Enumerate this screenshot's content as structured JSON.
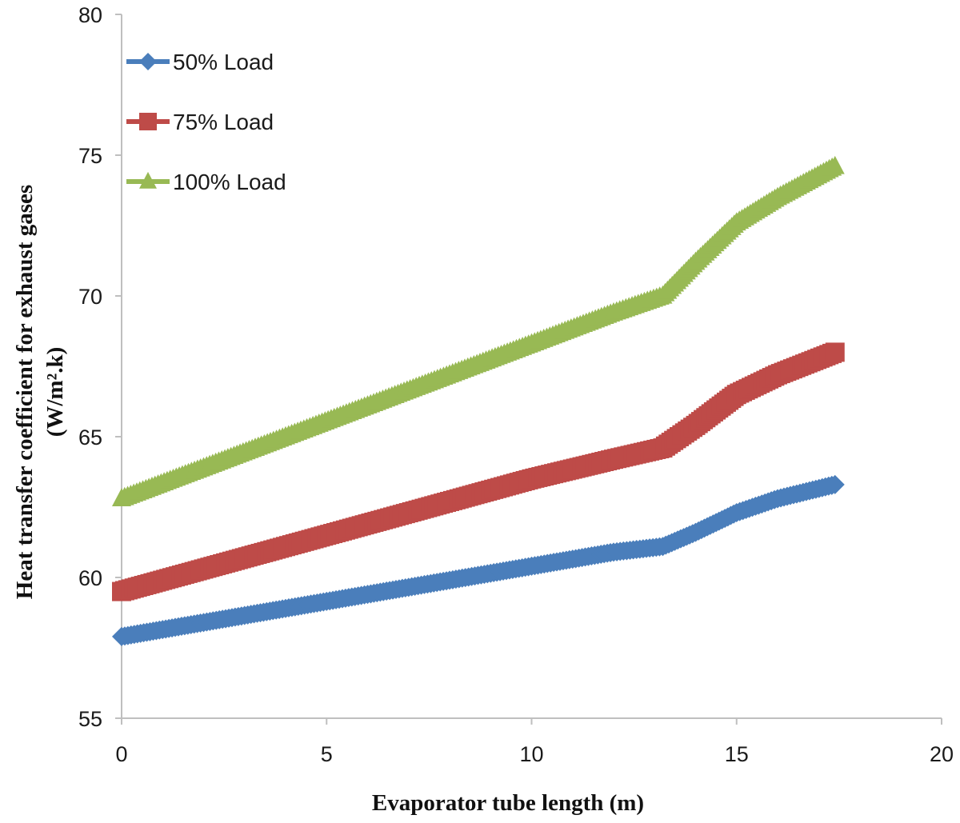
{
  "chart_data": {
    "type": "line",
    "title": "",
    "xlabel": "Evaporator tube length (m)",
    "ylabel_line1": "Heat transfer coefficient for exhaust gases",
    "ylabel_line2": "(W/m².k)",
    "xlim": [
      0,
      20
    ],
    "ylim": [
      55,
      80
    ],
    "x_ticks": [
      0,
      5,
      10,
      15,
      20
    ],
    "y_ticks": [
      55,
      60,
      65,
      70,
      75,
      80
    ],
    "grid": false,
    "legend_position": "top-left",
    "series": [
      {
        "name": "50% Load",
        "color": "#4a7ebb",
        "marker": "diamond",
        "x": [
          0,
          2,
          4,
          6,
          8,
          10,
          12,
          13.2,
          14,
          15,
          16,
          17.4
        ],
        "y": [
          57.9,
          58.4,
          58.9,
          59.4,
          59.9,
          60.4,
          60.9,
          61.1,
          61.6,
          62.3,
          62.8,
          63.3
        ]
      },
      {
        "name": "75% Load",
        "color": "#be4b48",
        "marker": "square",
        "x": [
          0,
          2,
          4,
          6,
          8,
          10,
          12,
          13.2,
          14,
          15,
          16,
          17.4
        ],
        "y": [
          59.5,
          60.3,
          61.1,
          61.9,
          62.7,
          63.5,
          64.2,
          64.6,
          65.4,
          66.5,
          67.2,
          68.0
        ]
      },
      {
        "name": "100% Load",
        "color": "#98b954",
        "marker": "triangle",
        "x": [
          0,
          2,
          4,
          6,
          8,
          10,
          12,
          13.2,
          14,
          15,
          16,
          17.4
        ],
        "y": [
          62.8,
          63.9,
          65.0,
          66.1,
          67.2,
          68.3,
          69.4,
          70.0,
          71.2,
          72.6,
          73.5,
          74.6
        ]
      }
    ]
  }
}
